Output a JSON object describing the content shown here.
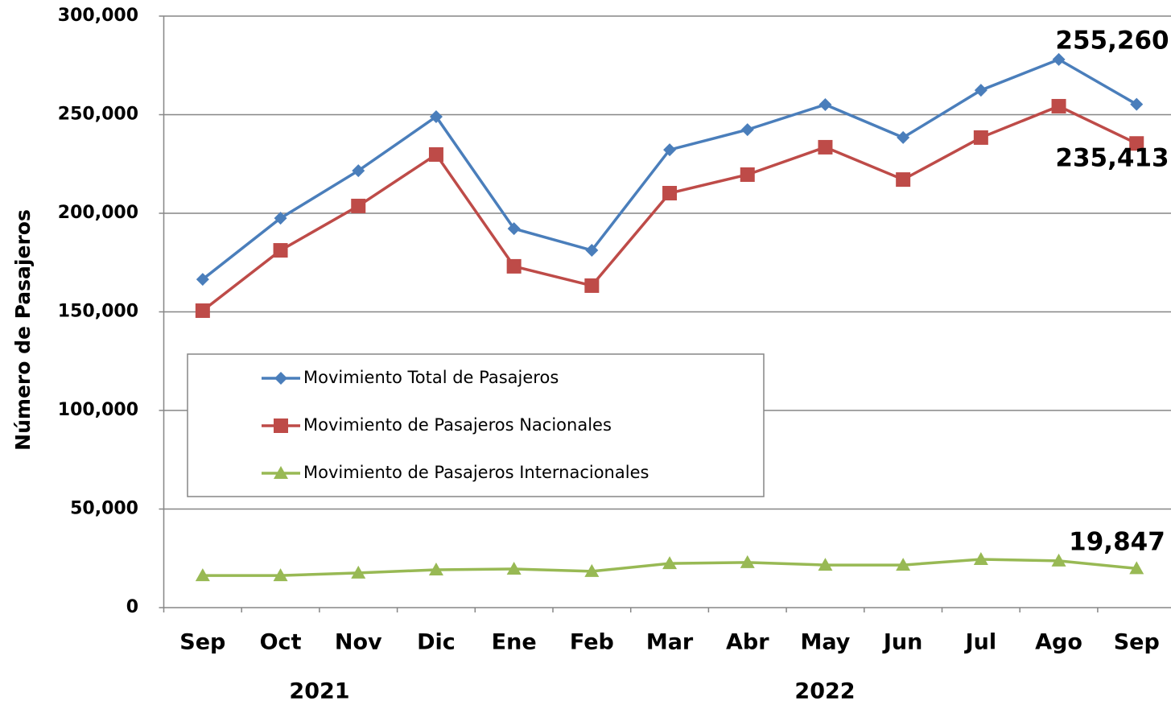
{
  "chart_data": {
    "type": "line",
    "y_label": "Número de Pasajeros",
    "categories": [
      "Sep",
      "Oct",
      "Nov",
      "Dic",
      "Ene",
      "Feb",
      "Mar",
      "Abr",
      "May",
      "Jun",
      "Jul",
      "Ago",
      "Sep"
    ],
    "year_labels": [
      "2021",
      "2022"
    ],
    "series": [
      {
        "name": "Movimiento Total de Pasajeros",
        "color": "#4a7ebb",
        "marker": "diamond",
        "values": [
          166500,
          197500,
          221600,
          249000,
          192200,
          181200,
          232200,
          242400,
          255100,
          238400,
          262400,
          278000,
          255260
        ],
        "value_labels": [
          null,
          null,
          null,
          null,
          null,
          null,
          null,
          null,
          null,
          null,
          null,
          null,
          "255,260"
        ]
      },
      {
        "name": "Movimiento de Pasajeros Nacionales",
        "color": "#be4b48",
        "marker": "square",
        "values": [
          150600,
          181200,
          203700,
          229800,
          173100,
          163300,
          210200,
          219600,
          233500,
          217100,
          238400,
          254300,
          235413
        ],
        "value_labels": [
          null,
          null,
          null,
          null,
          null,
          null,
          null,
          null,
          null,
          null,
          null,
          null,
          "235,413"
        ]
      },
      {
        "name": "Movimiento de Pasajeros Internacionales",
        "color": "#98b954",
        "marker": "triangle",
        "values": [
          16300,
          16300,
          17600,
          19200,
          19600,
          18400,
          22400,
          22900,
          21600,
          21600,
          24500,
          23700,
          19847
        ],
        "value_labels": [
          null,
          null,
          null,
          null,
          null,
          null,
          null,
          null,
          null,
          null,
          null,
          null,
          "19,847"
        ]
      }
    ],
    "ylim": [
      0,
      300000
    ],
    "yticks": [
      0,
      {
        "value": 50000,
        "label": "50,000"
      },
      {
        "value": 100000,
        "label": "100,000"
      },
      {
        "value": 150000,
        "label": "150,000"
      },
      {
        "value": 200000,
        "label": "200,000"
      },
      {
        "value": 250000,
        "label": "250,000"
      },
      {
        "value": 300000,
        "label": "300,000"
      }
    ],
    "grid": true
  }
}
